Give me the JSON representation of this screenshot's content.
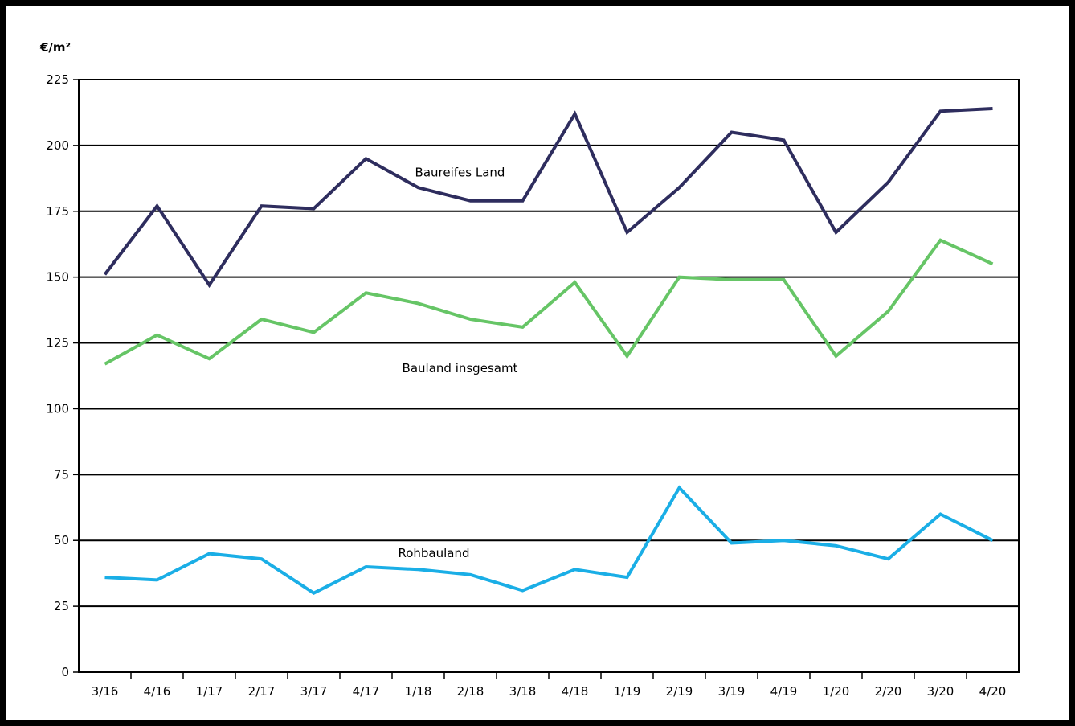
{
  "chart_data": {
    "type": "line",
    "title": "",
    "xlabel": "",
    "ylabel": "€/m²",
    "ylim": [
      0,
      225
    ],
    "yticks": [
      0,
      25,
      50,
      75,
      100,
      125,
      150,
      175,
      200,
      225
    ],
    "grid": true,
    "legend": "inline labels",
    "categories": [
      "3/16",
      "4/16",
      "1/17",
      "2/17",
      "3/17",
      "4/17",
      "1/18",
      "2/18",
      "3/18",
      "4/18",
      "1/19",
      "2/19",
      "3/19",
      "4/19",
      "1/20",
      "2/20",
      "3/20",
      "4/20"
    ],
    "series": [
      {
        "name": "Baureifes Land",
        "color": "#2e2d5e",
        "values": [
          151,
          177,
          147,
          177,
          176,
          195,
          184,
          179,
          179,
          212,
          167,
          184,
          205,
          202,
          167,
          186,
          213,
          214
        ]
      },
      {
        "name": "Bauland insgesamt",
        "color": "#66c566",
        "values": [
          117,
          128,
          119,
          134,
          129,
          144,
          140,
          134,
          131,
          148,
          120,
          150,
          149,
          149,
          120,
          137,
          164,
          155
        ]
      },
      {
        "name": "Rohbauland",
        "color": "#1aaee6",
        "values": [
          36,
          35,
          45,
          43,
          30,
          40,
          39,
          37,
          31,
          39,
          36,
          70,
          49,
          50,
          48,
          43,
          60,
          50
        ]
      }
    ]
  }
}
